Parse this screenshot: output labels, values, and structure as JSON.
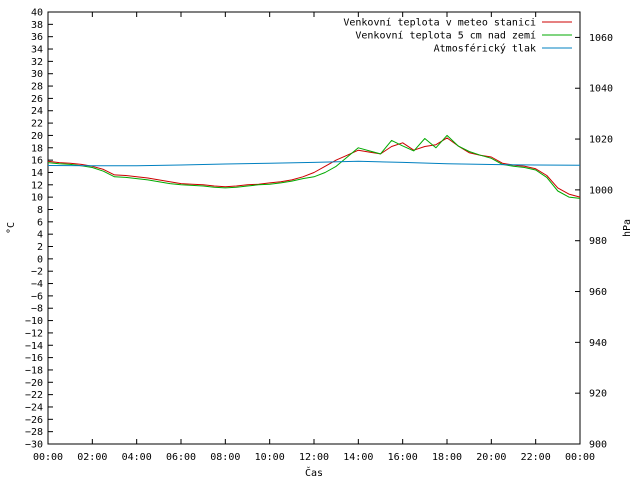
{
  "chart_data": {
    "type": "line",
    "xlabel": "Čas",
    "ylabel": "°C",
    "y2label": "hPa",
    "x_tick_labels": [
      "00:00",
      "02:00",
      "04:00",
      "06:00",
      "08:00",
      "10:00",
      "12:00",
      "14:00",
      "16:00",
      "18:00",
      "20:00",
      "22:00",
      "00:00"
    ],
    "xlim": [
      0,
      24
    ],
    "ylim": [
      -30,
      40
    ],
    "y_ticks": [
      -30,
      -28,
      -26,
      -24,
      -22,
      -20,
      -18,
      -16,
      -14,
      -12,
      -10,
      -8,
      -6,
      -4,
      -2,
      0,
      2,
      4,
      6,
      8,
      10,
      12,
      14,
      16,
      18,
      20,
      22,
      24,
      26,
      28,
      30,
      32,
      34,
      36,
      38,
      40
    ],
    "y_tick_labels": [
      "−30",
      "−28",
      "−26",
      "−24",
      "−22",
      "−20",
      "−18",
      "−16",
      "−14",
      "−12",
      "−10",
      "−8",
      "−6",
      "−4",
      "−2",
      "0",
      "2",
      "4",
      "6",
      "8",
      "10",
      "12",
      "14",
      "16",
      "18",
      "20",
      "22",
      "24",
      "26",
      "28",
      "30",
      "32",
      "34",
      "36",
      "38",
      "40"
    ],
    "y2lim": [
      900,
      1070
    ],
    "y2_ticks": [
      900,
      920,
      940,
      960,
      980,
      1000,
      1020,
      1040,
      1060
    ],
    "y2_tick_labels": [
      "900",
      "920",
      "940",
      "960",
      "980",
      "1000",
      "1020",
      "1040",
      "1060"
    ],
    "grid": false,
    "legend_position": "top-right",
    "series": [
      {
        "name": "Venkovní teplota v meteo stanici",
        "color": "#cc0000",
        "axis": "left",
        "x": [
          0,
          0.5,
          1,
          1.5,
          2,
          2.5,
          3,
          3.5,
          4,
          4.5,
          5,
          5.5,
          6,
          6.5,
          7,
          7.5,
          8,
          8.5,
          9,
          9.5,
          10,
          10.5,
          11,
          11.5,
          12,
          12.5,
          13,
          13.5,
          14,
          14.5,
          15,
          15.5,
          16,
          16.5,
          17,
          17.5,
          18,
          18.5,
          19,
          19.5,
          20,
          20.5,
          21,
          21.5,
          22,
          22.5,
          23,
          23.5,
          24
        ],
        "values": [
          15.8,
          15.6,
          15.5,
          15.3,
          15,
          14.5,
          13.6,
          13.5,
          13.3,
          13.1,
          12.8,
          12.5,
          12.2,
          12.1,
          12,
          11.8,
          11.7,
          11.8,
          12,
          12.1,
          12.3,
          12.5,
          12.8,
          13.3,
          14,
          15,
          16,
          16.8,
          17.6,
          17.3,
          17,
          18.2,
          18.8,
          17.6,
          18.2,
          18.5,
          19.6,
          18.3,
          17.2,
          16.8,
          16.5,
          15.5,
          15.2,
          15,
          14.6,
          13.5,
          11.5,
          10.5,
          10
        ]
      },
      {
        "name": "Venkovní teplota 5 cm nad zemí",
        "color": "#00aa00",
        "axis": "left",
        "x": [
          0,
          0.5,
          1,
          1.5,
          2,
          2.5,
          3,
          3.5,
          4,
          4.5,
          5,
          5.5,
          6,
          6.5,
          7,
          7.5,
          8,
          8.5,
          9,
          9.5,
          10,
          10.5,
          11,
          11.5,
          12,
          12.5,
          13,
          13.5,
          14,
          14.5,
          15,
          15.5,
          16,
          16.5,
          17,
          17.5,
          18,
          18.5,
          19,
          19.5,
          20,
          20.5,
          21,
          21.5,
          22,
          22.5,
          23,
          23.5,
          24
        ],
        "values": [
          15.6,
          15.4,
          15.3,
          15.1,
          14.8,
          14.2,
          13.3,
          13.2,
          13,
          12.8,
          12.5,
          12.2,
          12,
          11.9,
          11.8,
          11.6,
          11.5,
          11.6,
          11.8,
          12,
          12.1,
          12.3,
          12.6,
          13,
          13.3,
          14,
          15,
          16.5,
          18,
          17.5,
          17,
          19.2,
          18.3,
          17.5,
          19.5,
          18,
          20,
          18.3,
          17.4,
          16.8,
          16.3,
          15.3,
          15,
          14.8,
          14.4,
          13.2,
          11,
          10,
          9.8
        ]
      },
      {
        "name": "Atmosférický tlak",
        "color": "#0080c0",
        "axis": "right",
        "x": [
          0,
          2,
          4,
          6,
          8,
          10,
          12,
          14,
          16,
          18,
          20,
          22,
          24
        ],
        "values": [
          1009.6,
          1009.5,
          1009.5,
          1009.8,
          1010.2,
          1010.5,
          1010.8,
          1011.3,
          1010.8,
          1010.3,
          1010,
          1009.8,
          1009.7
        ]
      }
    ]
  }
}
